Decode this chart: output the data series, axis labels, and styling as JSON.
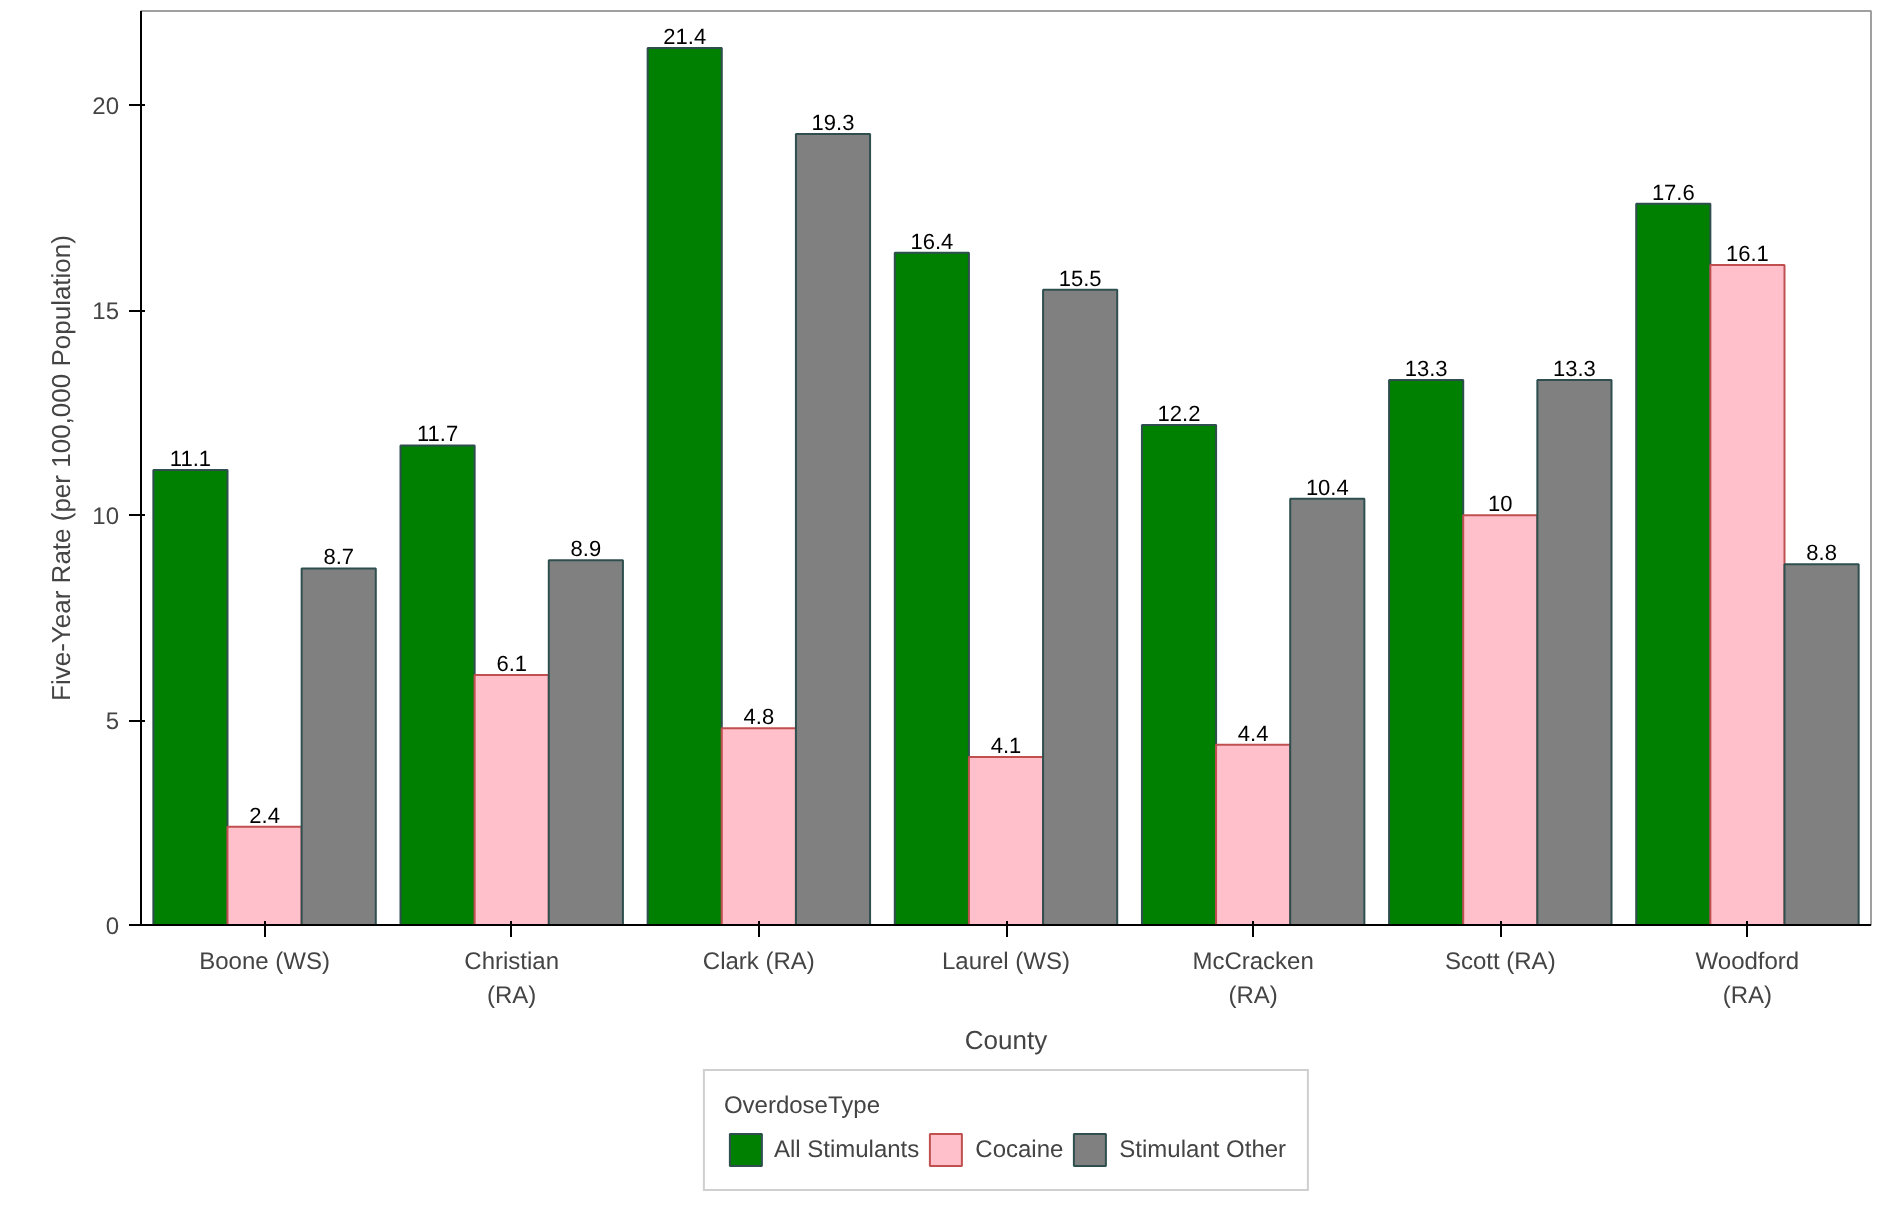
{
  "chart_data": {
    "type": "bar",
    "xlabel": "County",
    "ylabel": "Five-Year Rate (per 100,000 Population)",
    "legend_title": "OverdoseType",
    "categories": [
      "Boone (WS)",
      "Christian (RA)",
      "Clark (RA)",
      "Laurel (WS)",
      "McCracken (RA)",
      "Scott (RA)",
      "Woodford (RA)"
    ],
    "series": [
      {
        "name": "All Stimulants",
        "color": "#008000",
        "values": [
          11.1,
          11.7,
          21.4,
          16.4,
          12.2,
          13.3,
          17.6
        ]
      },
      {
        "name": "Cocaine",
        "color": "#ffc0cb",
        "values": [
          2.4,
          6.1,
          4.8,
          4.1,
          4.4,
          10,
          16.1
        ]
      },
      {
        "name": "Stimulant Other",
        "color": "#808080",
        "values": [
          8.7,
          8.9,
          19.3,
          15.5,
          10.4,
          13.3,
          8.8
        ]
      }
    ],
    "ylim": [
      0,
      22.3
    ],
    "yticks": [
      0,
      5,
      10,
      15,
      20
    ],
    "grid": false,
    "legend": "bottom",
    "data_labels": true
  }
}
